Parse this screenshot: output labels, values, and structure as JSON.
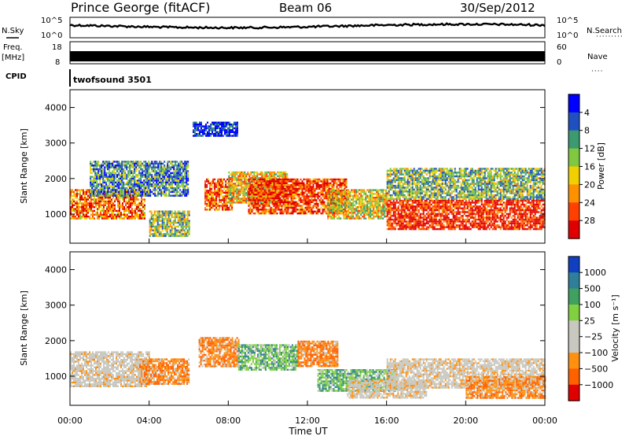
{
  "header": {
    "station": "Prince George (fitACF)",
    "beam": "Beam 06",
    "date": "30/Sep/2012"
  },
  "top_panels": {
    "nsky_label": "N.Sky",
    "nsky_ticks": [
      "10^5",
      "10^0"
    ],
    "nsearch_label": "N.Search",
    "nsearch_ticks": [
      "10^5",
      "10^0"
    ],
    "freq_label_1": "Freq.",
    "freq_label_2": "[MHz]",
    "freq_ticks": [
      "18",
      "8"
    ],
    "nave_label": "Nave",
    "nave_ticks": [
      "60",
      "0"
    ],
    "cpid_label": "CPID",
    "cpid_value": "twofsound 3501"
  },
  "chart_data": [
    {
      "type": "heatmap",
      "panel": "power",
      "ylabel": "Slant Range [km]",
      "ylim": [
        180,
        4500
      ],
      "yticks": [
        "1000",
        "2000",
        "3000",
        "4000"
      ],
      "xlim": [
        "00:00",
        "24:00"
      ],
      "xticks": [
        "00:00",
        "04:00",
        "08:00",
        "12:00",
        "16:00",
        "20:00",
        "00:00"
      ],
      "colorbar": {
        "label": "Power [dB]",
        "ticks": [
          "4",
          "8",
          "12",
          "16",
          "20",
          "24",
          "28"
        ],
        "colors": [
          "#0000ff",
          "#2050c0",
          "#3c9a70",
          "#7fc840",
          "#f0d000",
          "#ff9000",
          "#ff4000",
          "#e00000"
        ]
      },
      "echo_regions": [
        {
          "t": [
            0.0,
            3.8
          ],
          "range": [
            900,
            1700
          ],
          "level": 0.75
        },
        {
          "t": [
            1.0,
            6.0
          ],
          "range": [
            1500,
            2500
          ],
          "level": 0.3
        },
        {
          "t": [
            4.0,
            6.0
          ],
          "range": [
            400,
            1100
          ],
          "level": 0.45
        },
        {
          "t": [
            6.2,
            8.5
          ],
          "range": [
            3200,
            3600
          ],
          "level": 0.1
        },
        {
          "t": [
            6.8,
            8.2
          ],
          "range": [
            1100,
            2000
          ],
          "level": 0.8
        },
        {
          "t": [
            8.0,
            11.0
          ],
          "range": [
            1300,
            2200
          ],
          "level": 0.6
        },
        {
          "t": [
            9.0,
            14.0
          ],
          "range": [
            1000,
            2000
          ],
          "level": 0.85
        },
        {
          "t": [
            13.0,
            16.0
          ],
          "range": [
            900,
            1700
          ],
          "level": 0.55
        },
        {
          "t": [
            16.0,
            24.0
          ],
          "range": [
            600,
            1400
          ],
          "level": 0.9
        },
        {
          "t": [
            16.0,
            24.0
          ],
          "range": [
            1400,
            2300
          ],
          "level": 0.4
        }
      ]
    },
    {
      "type": "heatmap",
      "panel": "velocity",
      "ylabel": "Slant Range [km]",
      "ylim": [
        180,
        4500
      ],
      "yticks": [
        "1000",
        "2000",
        "3000",
        "4000"
      ],
      "xlabel": "Time UT",
      "xlim": [
        "00:00",
        "24:00"
      ],
      "xticks": [
        "00:00",
        "04:00",
        "08:00",
        "12:00",
        "16:00",
        "20:00",
        "00:00"
      ],
      "colorbar": {
        "label": "Velocity [m s⁻¹]",
        "ticks": [
          "1000",
          "500",
          "100",
          "25",
          "−25",
          "−100",
          "−500",
          "−1000"
        ],
        "colors": [
          "#1040c0",
          "#2f7f9a",
          "#3fa060",
          "#80d040",
          "#c8c8c0",
          "#c8c8c0",
          "#ff9010",
          "#ff6000",
          "#e00000"
        ]
      },
      "echo_regions": [
        {
          "t": [
            0.0,
            4.0
          ],
          "range": [
            700,
            1700
          ],
          "class": "gray"
        },
        {
          "t": [
            3.5,
            6.0
          ],
          "range": [
            800,
            1500
          ],
          "class": "orange"
        },
        {
          "t": [
            6.5,
            8.5
          ],
          "range": [
            1300,
            2100
          ],
          "class": "orange"
        },
        {
          "t": [
            8.5,
            11.5
          ],
          "range": [
            1200,
            1900
          ],
          "class": "green"
        },
        {
          "t": [
            11.5,
            13.5
          ],
          "range": [
            1300,
            2000
          ],
          "class": "orange"
        },
        {
          "t": [
            12.5,
            16.5
          ],
          "range": [
            600,
            1200
          ],
          "class": "green"
        },
        {
          "t": [
            14.0,
            18.0
          ],
          "range": [
            400,
            900
          ],
          "class": "gray"
        },
        {
          "t": [
            16.0,
            24.0
          ],
          "range": [
            700,
            1500
          ],
          "class": "gray"
        },
        {
          "t": [
            20.0,
            24.0
          ],
          "range": [
            400,
            1000
          ],
          "class": "orange"
        }
      ]
    }
  ]
}
